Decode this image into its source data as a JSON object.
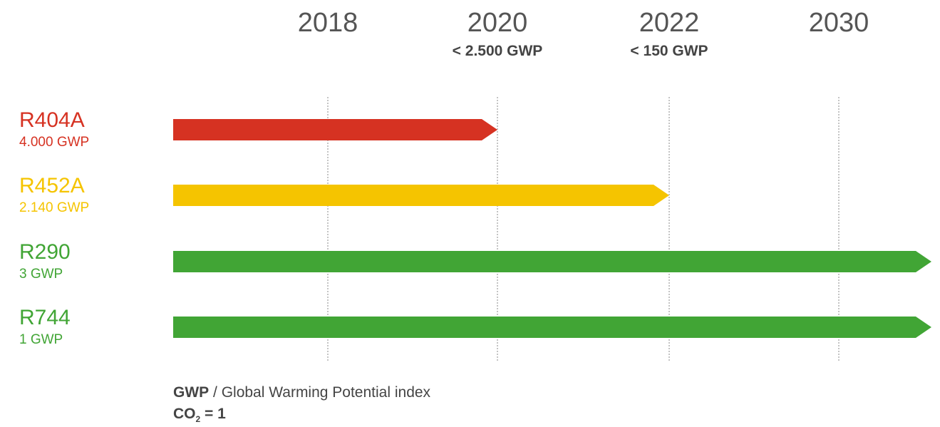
{
  "colors": {
    "red": "#d63222",
    "yellow": "#f5c400",
    "green": "#41a535",
    "text_gray": "#444444",
    "year_gray": "#555555",
    "gridline": "#888888"
  },
  "footnote": {
    "term": "GWP",
    "separator": " / ",
    "definition": "Global Warming Potential index",
    "formula_base": "CO",
    "formula_subscript": "2",
    "formula_rest": " = 1"
  },
  "chart_data": {
    "type": "bar",
    "orientation": "horizontal timeline",
    "xaxis_position": "top",
    "x_ticks": [
      {
        "label": "2018",
        "limit": ""
      },
      {
        "label": "2020",
        "limit": "< 2.500 GWP"
      },
      {
        "label": "2022",
        "limit": "< 150 GWP"
      },
      {
        "label": "2030",
        "limit": ""
      }
    ],
    "grid": true,
    "series": [
      {
        "name": "R404A",
        "gwp_label": "4.000 GWP",
        "gwp": 4000,
        "end": "2020",
        "continues": false,
        "color": "#d63222"
      },
      {
        "name": "R452A",
        "gwp_label": "2.140 GWP",
        "gwp": 2140,
        "end": "2022",
        "continues": false,
        "color": "#f5c400"
      },
      {
        "name": "R290",
        "gwp_label": "3 GWP",
        "gwp": 3,
        "end": "beyond 2030",
        "continues": true,
        "color": "#41a535"
      },
      {
        "name": "R744",
        "gwp_label": "1 GWP",
        "gwp": 1,
        "end": "beyond 2030",
        "continues": true,
        "color": "#41a535"
      }
    ]
  }
}
